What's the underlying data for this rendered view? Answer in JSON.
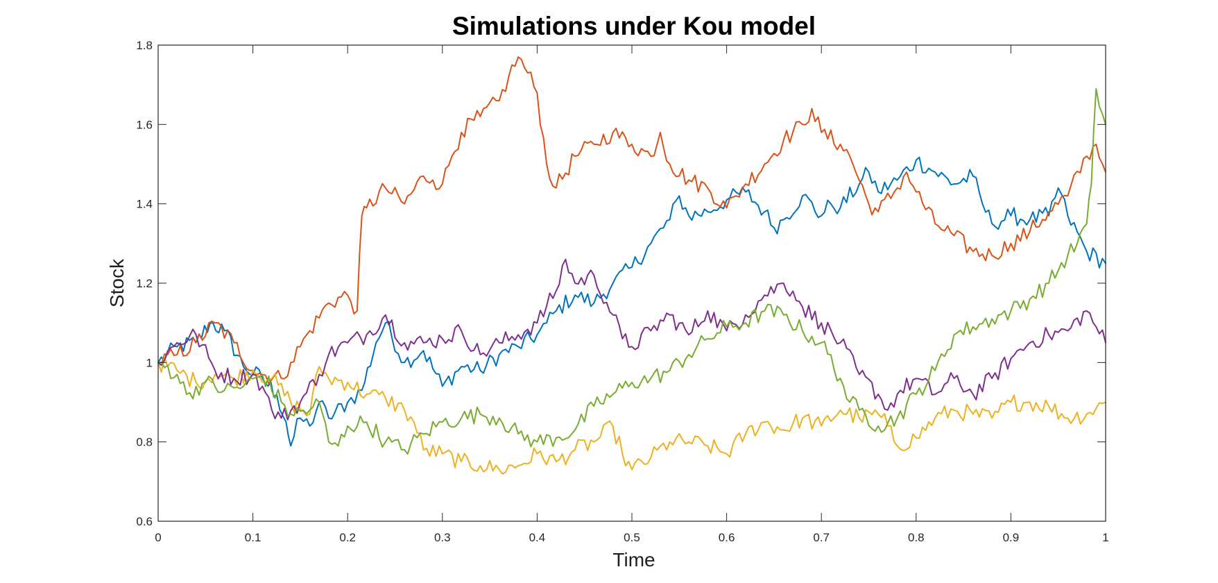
{
  "chart_data": {
    "type": "line",
    "title": "Simulations under Kou model",
    "xlabel": "Time",
    "ylabel": "Stock",
    "xlim": [
      0,
      1
    ],
    "ylim": [
      0.6,
      1.8
    ],
    "xticks": [
      0,
      0.1,
      0.2,
      0.3,
      0.4,
      0.5,
      0.6,
      0.7,
      0.8,
      0.9,
      1
    ],
    "xtick_labels": [
      "0",
      "0.1",
      "0.2",
      "0.3",
      "0.4",
      "0.5",
      "0.6",
      "0.7",
      "0.8",
      "0.9",
      "1"
    ],
    "yticks": [
      0.6,
      0.8,
      1,
      1.2,
      1.4,
      1.6,
      1.8
    ],
    "ytick_labels": [
      "0.6",
      "0.8",
      "1",
      "1.2",
      "1.4",
      "1.6",
      "1.8"
    ],
    "grid": false,
    "legend": "none",
    "box": true,
    "series": [
      {
        "color": "#0072BD",
        "x": [
          0,
          0.02,
          0.04,
          0.055,
          0.07,
          0.09,
          0.11,
          0.125,
          0.135,
          0.14,
          0.15,
          0.16,
          0.17,
          0.18,
          0.2,
          0.215,
          0.23,
          0.24,
          0.26,
          0.28,
          0.3,
          0.32,
          0.34,
          0.36,
          0.38,
          0.4,
          0.41,
          0.42,
          0.44,
          0.46,
          0.48,
          0.5,
          0.52,
          0.54,
          0.55,
          0.56,
          0.58,
          0.6,
          0.62,
          0.64,
          0.65,
          0.66,
          0.68,
          0.7,
          0.71,
          0.72,
          0.74,
          0.75,
          0.76,
          0.78,
          0.8,
          0.82,
          0.84,
          0.86,
          0.87,
          0.88,
          0.9,
          0.92,
          0.94,
          0.95,
          0.96,
          0.98,
          1
        ],
        "y": [
          1.0,
          1.04,
          1.05,
          1.1,
          1.08,
          0.99,
          0.96,
          0.92,
          0.85,
          0.79,
          0.86,
          0.84,
          0.9,
          0.86,
          0.9,
          0.93,
          1.05,
          1.1,
          1.0,
          1.03,
          0.94,
          0.99,
          0.98,
          1.02,
          1.04,
          1.07,
          1.1,
          1.13,
          1.17,
          1.15,
          1.2,
          1.24,
          1.3,
          1.36,
          1.42,
          1.37,
          1.38,
          1.41,
          1.43,
          1.38,
          1.34,
          1.36,
          1.42,
          1.37,
          1.4,
          1.39,
          1.45,
          1.48,
          1.43,
          1.46,
          1.51,
          1.48,
          1.45,
          1.47,
          1.4,
          1.35,
          1.37,
          1.36,
          1.37,
          1.44,
          1.37,
          1.28,
          1.25
        ]
      },
      {
        "color": "#D95319",
        "x": [
          0,
          0.02,
          0.04,
          0.06,
          0.08,
          0.1,
          0.11,
          0.13,
          0.14,
          0.16,
          0.18,
          0.2,
          0.21,
          0.215,
          0.22,
          0.24,
          0.26,
          0.28,
          0.29,
          0.3,
          0.31,
          0.32,
          0.34,
          0.36,
          0.37,
          0.38,
          0.39,
          0.4,
          0.41,
          0.42,
          0.44,
          0.46,
          0.48,
          0.5,
          0.52,
          0.53,
          0.54,
          0.56,
          0.58,
          0.6,
          0.61,
          0.62,
          0.64,
          0.66,
          0.68,
          0.69,
          0.7,
          0.72,
          0.73,
          0.75,
          0.76,
          0.78,
          0.79,
          0.8,
          0.82,
          0.84,
          0.86,
          0.88,
          0.9,
          0.92,
          0.94,
          0.96,
          0.98,
          0.99,
          1
        ],
        "y": [
          1.0,
          1.02,
          1.05,
          1.1,
          1.05,
          0.98,
          0.97,
          0.96,
          1.0,
          1.08,
          1.15,
          1.17,
          1.13,
          1.37,
          1.39,
          1.44,
          1.4,
          1.47,
          1.46,
          1.45,
          1.52,
          1.58,
          1.62,
          1.66,
          1.72,
          1.77,
          1.73,
          1.68,
          1.5,
          1.44,
          1.52,
          1.55,
          1.58,
          1.55,
          1.52,
          1.58,
          1.5,
          1.46,
          1.44,
          1.39,
          1.42,
          1.45,
          1.5,
          1.56,
          1.6,
          1.64,
          1.58,
          1.55,
          1.52,
          1.4,
          1.38,
          1.44,
          1.48,
          1.43,
          1.35,
          1.32,
          1.28,
          1.27,
          1.3,
          1.33,
          1.38,
          1.42,
          1.52,
          1.55,
          1.48
        ]
      },
      {
        "color": "#EDB120",
        "x": [
          0,
          0.02,
          0.04,
          0.06,
          0.08,
          0.1,
          0.12,
          0.14,
          0.16,
          0.17,
          0.18,
          0.2,
          0.22,
          0.24,
          0.26,
          0.27,
          0.28,
          0.3,
          0.32,
          0.34,
          0.36,
          0.38,
          0.4,
          0.42,
          0.44,
          0.46,
          0.48,
          0.49,
          0.5,
          0.52,
          0.54,
          0.56,
          0.58,
          0.6,
          0.62,
          0.64,
          0.66,
          0.68,
          0.7,
          0.72,
          0.74,
          0.76,
          0.77,
          0.78,
          0.8,
          0.82,
          0.84,
          0.86,
          0.88,
          0.9,
          0.92,
          0.94,
          0.96,
          0.98,
          1
        ],
        "y": [
          1.0,
          0.98,
          0.95,
          0.97,
          0.96,
          0.98,
          0.96,
          0.9,
          0.87,
          0.99,
          0.96,
          0.95,
          0.92,
          0.91,
          0.88,
          0.85,
          0.78,
          0.77,
          0.75,
          0.74,
          0.73,
          0.74,
          0.77,
          0.75,
          0.78,
          0.8,
          0.84,
          0.77,
          0.73,
          0.76,
          0.8,
          0.8,
          0.79,
          0.77,
          0.82,
          0.85,
          0.83,
          0.86,
          0.84,
          0.88,
          0.86,
          0.87,
          0.84,
          0.79,
          0.81,
          0.86,
          0.88,
          0.87,
          0.86,
          0.9,
          0.9,
          0.89,
          0.86,
          0.87,
          0.9
        ]
      },
      {
        "color": "#7E2F8E",
        "x": [
          0,
          0.02,
          0.04,
          0.06,
          0.08,
          0.1,
          0.11,
          0.12,
          0.13,
          0.15,
          0.17,
          0.18,
          0.2,
          0.22,
          0.24,
          0.26,
          0.28,
          0.3,
          0.32,
          0.34,
          0.36,
          0.38,
          0.4,
          0.42,
          0.43,
          0.44,
          0.46,
          0.48,
          0.49,
          0.5,
          0.52,
          0.54,
          0.56,
          0.58,
          0.6,
          0.62,
          0.64,
          0.66,
          0.67,
          0.68,
          0.7,
          0.72,
          0.74,
          0.76,
          0.77,
          0.78,
          0.8,
          0.82,
          0.84,
          0.86,
          0.88,
          0.9,
          0.92,
          0.94,
          0.96,
          0.98,
          0.99,
          1
        ],
        "y": [
          1.0,
          1.05,
          1.07,
          0.98,
          0.96,
          0.97,
          0.94,
          0.88,
          0.86,
          0.9,
          0.97,
          1.02,
          1.05,
          1.07,
          1.12,
          1.05,
          1.05,
          1.06,
          1.08,
          1.02,
          1.05,
          1.07,
          1.1,
          1.18,
          1.26,
          1.2,
          1.22,
          1.12,
          1.06,
          1.04,
          1.08,
          1.12,
          1.07,
          1.13,
          1.08,
          1.12,
          1.17,
          1.2,
          1.18,
          1.14,
          1.1,
          1.05,
          0.97,
          0.92,
          0.88,
          0.92,
          0.96,
          0.92,
          0.96,
          0.92,
          0.96,
          1.01,
          1.05,
          1.07,
          1.08,
          1.13,
          1.09,
          1.05
        ]
      },
      {
        "color": "#77AC30",
        "x": [
          0,
          0.02,
          0.03,
          0.05,
          0.07,
          0.09,
          0.11,
          0.13,
          0.14,
          0.16,
          0.17,
          0.18,
          0.19,
          0.2,
          0.22,
          0.24,
          0.26,
          0.28,
          0.3,
          0.32,
          0.34,
          0.36,
          0.38,
          0.4,
          0.42,
          0.44,
          0.46,
          0.48,
          0.5,
          0.52,
          0.54,
          0.56,
          0.58,
          0.6,
          0.62,
          0.64,
          0.66,
          0.68,
          0.7,
          0.72,
          0.73,
          0.74,
          0.76,
          0.78,
          0.8,
          0.82,
          0.84,
          0.86,
          0.88,
          0.9,
          0.92,
          0.94,
          0.96,
          0.97,
          0.98,
          0.985,
          0.99,
          1
        ],
        "y": [
          1.0,
          0.97,
          0.92,
          0.95,
          0.93,
          0.94,
          0.97,
          0.9,
          0.87,
          0.88,
          0.9,
          0.8,
          0.79,
          0.84,
          0.85,
          0.8,
          0.78,
          0.82,
          0.85,
          0.86,
          0.87,
          0.86,
          0.82,
          0.8,
          0.81,
          0.83,
          0.89,
          0.92,
          0.95,
          0.96,
          0.98,
          1.02,
          1.06,
          1.09,
          1.1,
          1.13,
          1.12,
          1.08,
          1.05,
          0.96,
          0.9,
          0.88,
          0.84,
          0.86,
          0.92,
          0.98,
          1.07,
          1.09,
          1.11,
          1.13,
          1.16,
          1.2,
          1.27,
          1.3,
          1.35,
          1.45,
          1.69,
          1.6
        ]
      }
    ]
  }
}
